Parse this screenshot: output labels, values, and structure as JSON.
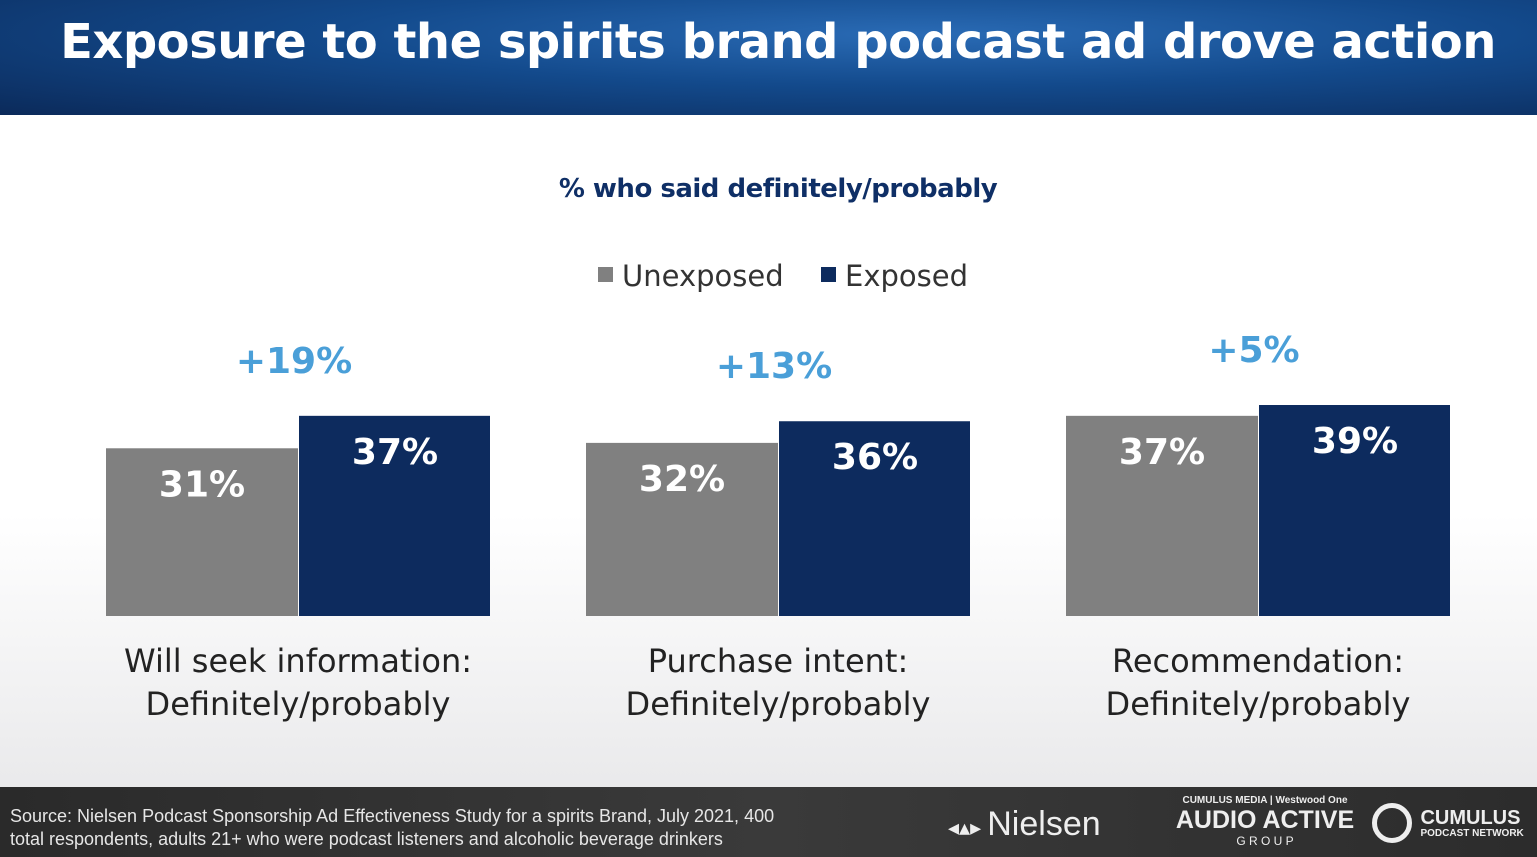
{
  "header": {
    "title": "Exposure to the spirits brand podcast ad drove action"
  },
  "chart_data": {
    "type": "bar",
    "title": "% who said definitely/probably",
    "legend_position": "top-center",
    "grid": false,
    "ylim": [
      0,
      40
    ],
    "categories": [
      "Will seek information: Definitely/probably",
      "Purchase intent: Definitely/probably",
      "Recommendation: Definitely/probably"
    ],
    "category_lines": [
      [
        "Will seek information:",
        "Definitely/probably"
      ],
      [
        "Purchase intent:",
        "Definitely/probably"
      ],
      [
        "Recommendation:",
        "Definitely/probably"
      ]
    ],
    "series": [
      {
        "name": "Unexposed",
        "values": [
          31,
          32,
          37
        ],
        "labels": [
          "31%",
          "32%",
          "37%"
        ],
        "color": "#808080"
      },
      {
        "name": "Exposed",
        "values": [
          37,
          36,
          39
        ],
        "labels": [
          "37%",
          "36%",
          "39%"
        ],
        "color": "#0d2b5e"
      }
    ],
    "annotations": [
      "+19%",
      "+13%",
      "+5%"
    ],
    "annotation_color": "#4a9fd8"
  },
  "footer": {
    "source_line1": "Source: Nielsen Podcast Sponsorship Ad Effectiveness Study for a spirits Brand, July 2021, 400",
    "source_line2": "total respondents, adults 21+ who were podcast listeners and alcoholic beverage drinkers",
    "logos": {
      "nielsen": "Nielsen",
      "cumulus_media": "CUMULUS MEDIA",
      "westwood": "Westwood One",
      "audio_active": "AUDIO ACTIVE",
      "group": "G R O U P",
      "cumulus": "CUMULUS",
      "podcast_network": "PODCAST NETWORK"
    }
  }
}
